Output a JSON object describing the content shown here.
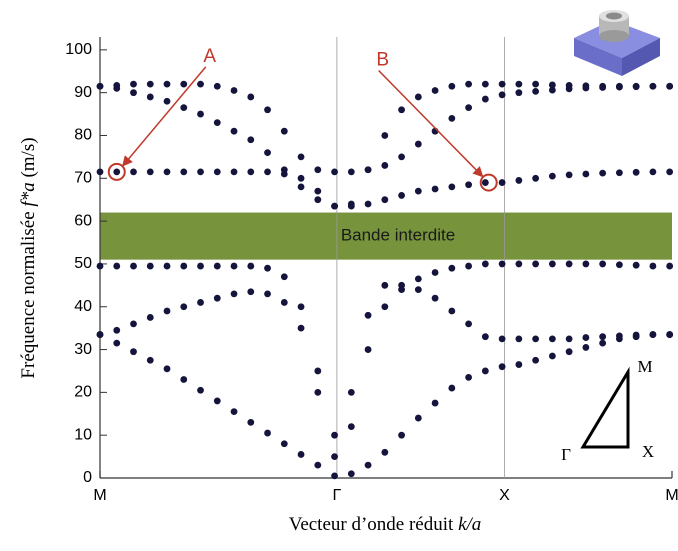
{
  "chart_data": {
    "type": "scatter",
    "x_label": {
      "text": "Vecteur d’onde réduit ",
      "var": "k/a"
    },
    "y_label": {
      "text": "Fréquence normalisée ",
      "var": "f*a",
      "unit": " (m/s)"
    },
    "xlim": [
      0,
      3.414
    ],
    "ylim": [
      0,
      103
    ],
    "xticks": [
      {
        "value": 0,
        "label": "M"
      },
      {
        "value": 1.414,
        "label": "Γ"
      },
      {
        "value": 2.414,
        "label": "X"
      },
      {
        "value": 3.414,
        "label": "M"
      }
    ],
    "yticks": [
      0,
      10,
      20,
      30,
      40,
      50,
      60,
      70,
      80,
      90,
      100
    ],
    "x": [
      0,
      0.1,
      0.2,
      0.3,
      0.4,
      0.5,
      0.6,
      0.7,
      0.8,
      0.9,
      1.0,
      1.1,
      1.2,
      1.3,
      1.4,
      1.5,
      1.6,
      1.7,
      1.8,
      1.9,
      2.0,
      2.1,
      2.2,
      2.3,
      2.4,
      2.5,
      2.6,
      2.7,
      2.8,
      2.9,
      3.0,
      3.1,
      3.2,
      3.3,
      3.4
    ],
    "series": [
      {
        "color": "#14143c",
        "values": [
          33.5,
          31.5,
          29.5,
          27.5,
          25.5,
          23,
          20.5,
          18,
          15.5,
          13,
          10.5,
          8,
          5.5,
          3,
          0.5,
          1,
          3,
          6,
          10,
          14,
          17.5,
          21,
          23.5,
          25,
          26,
          26.5,
          27.5,
          28.5,
          29.5,
          30.5,
          31.5,
          32.5,
          33,
          33.5,
          33.5
        ]
      },
      {
        "color": "#14143c",
        "values": [
          33.5,
          34.5,
          36,
          37.5,
          39,
          40,
          41,
          42,
          43,
          43.5,
          43,
          41,
          35,
          20,
          5,
          20,
          38,
          45,
          45,
          44,
          42,
          39,
          36,
          33,
          32.5,
          32.5,
          32.5,
          32.5,
          32.5,
          32.8,
          33,
          33.2,
          33.4,
          33.5,
          33.5
        ]
      },
      {
        "color": "#14143c",
        "values": [
          49.5,
          49.5,
          49.5,
          49.5,
          49.5,
          49.5,
          49.5,
          49.5,
          49.5,
          49.5,
          49,
          47,
          40,
          25,
          10,
          12,
          30,
          40,
          44,
          46.5,
          48,
          49,
          49.5,
          50,
          50,
          50,
          50,
          50,
          50,
          50,
          50,
          49.8,
          49.7,
          49.5,
          49.5
        ]
      },
      {
        "color": "#14143c",
        "values": [
          91.5,
          91.7,
          92,
          92,
          92,
          92,
          92,
          91.5,
          90.5,
          89,
          86,
          81,
          75,
          72,
          71.5,
          71.5,
          72,
          73,
          75,
          78,
          81,
          84,
          86.5,
          88.5,
          89.5,
          90,
          90.3,
          90.6,
          90.9,
          91.1,
          91.2,
          91.3,
          91.4,
          91.5,
          91.5
        ]
      },
      {
        "color": "#14143c",
        "values": [
          91.5,
          91,
          90,
          89,
          88,
          86.5,
          85,
          83,
          81,
          79,
          76,
          72,
          68,
          65,
          63.5,
          64,
          72,
          80,
          86,
          89,
          90.5,
          91.5,
          92,
          92,
          92,
          92,
          92,
          91.8,
          91.7,
          91.6,
          91.5,
          91.5,
          91.5,
          91.5,
          91.5
        ]
      },
      {
        "color": "#14143c",
        "values": [
          71.5,
          71.5,
          71.5,
          71.5,
          71.5,
          71.5,
          71.5,
          71.5,
          71.5,
          71.5,
          71.5,
          71,
          70,
          67,
          63.5,
          63.5,
          64,
          65,
          66,
          67,
          67.5,
          68,
          68.5,
          69,
          69,
          69.5,
          70,
          70.5,
          70.8,
          71,
          71.2,
          71.3,
          71.4,
          71.5,
          71.5
        ]
      }
    ],
    "band_gap": {
      "label": "Bande interdite",
      "range": [
        51,
        62
      ],
      "color": "#77933c"
    },
    "annotations": [
      {
        "text": "A",
        "x": 0.1,
        "y": 71.5,
        "color": "#c0392b"
      },
      {
        "text": "B",
        "x": 2.32,
        "y": 69,
        "color": "#c0392b"
      }
    ],
    "inset_labels": {
      "top": "M",
      "right": "X",
      "left": "Γ"
    }
  }
}
